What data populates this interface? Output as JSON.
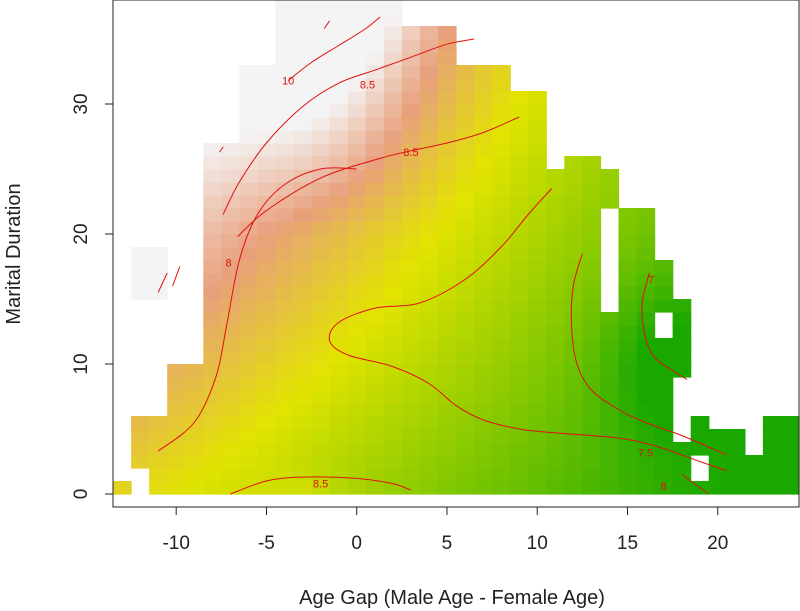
{
  "chart_data": {
    "type": "heatmap",
    "title": "",
    "xlabel": "Age Gap (Male Age - Female Age)",
    "ylabel": "Marital Duration",
    "xlim": [
      -13.5,
      24.5
    ],
    "ylim": [
      -1,
      38
    ],
    "x_ticks": [
      "-10",
      "-5",
      "0",
      "5",
      "10",
      "15",
      "20"
    ],
    "x_tick_values": [
      -10,
      -5,
      0,
      5,
      10,
      15,
      20
    ],
    "y_ticks": [
      "0",
      "10",
      "20",
      "30"
    ],
    "y_tick_values": [
      0,
      10,
      20,
      30
    ],
    "grid": false,
    "legend": "none",
    "color_scale": {
      "low": "#18a800",
      "mid": "#e2e400",
      "high": "#f4f4f4",
      "domain": [
        7.0,
        8.7,
        10.2
      ]
    },
    "contour_color": "#e01010",
    "contour_levels": [
      "10",
      "8.5",
      "8.5",
      "8",
      "7.5",
      "7",
      "8.5",
      "8"
    ],
    "contours": [
      {
        "level": "10",
        "points": [
          [
            -3.8,
            31.8
          ],
          [
            -2.5,
            33.2
          ],
          [
            -1,
            34.5
          ],
          [
            0.5,
            35.8
          ],
          [
            1.3,
            36.7
          ]
        ]
      },
      {
        "level": "10",
        "points": [
          [
            -10.2,
            16
          ],
          [
            -9.8,
            17.5
          ]
        ]
      },
      {
        "level": "10",
        "points": [
          [
            -1.8,
            35.8
          ],
          [
            -1.5,
            36.4
          ]
        ]
      },
      {
        "level": "8.5",
        "points": [
          [
            -7.4,
            21.5
          ],
          [
            -6.5,
            24
          ],
          [
            -5,
            27
          ],
          [
            -3,
            29.8
          ],
          [
            -1,
            31.6
          ],
          [
            1,
            32.6
          ],
          [
            3,
            33.6
          ],
          [
            5,
            34.6
          ],
          [
            6.5,
            35
          ]
        ]
      },
      {
        "level": "8.5",
        "points": [
          [
            -7.6,
            26.3
          ],
          [
            -7.4,
            26.7
          ]
        ]
      },
      {
        "level": "8.5",
        "points": [
          [
            -6.6,
            19.8
          ],
          [
            -5,
            21.8
          ],
          [
            -2,
            24.3
          ],
          [
            1,
            25.7
          ],
          [
            3,
            26.4
          ],
          [
            5,
            27
          ],
          [
            7,
            27.8
          ],
          [
            9,
            29
          ]
        ]
      },
      {
        "level": "8",
        "points": [
          [
            -11,
            3.3
          ],
          [
            -9,
            5.5
          ],
          [
            -7.8,
            9
          ],
          [
            -7.2,
            13
          ],
          [
            -6.5,
            18
          ],
          [
            -5.5,
            21.5
          ],
          [
            -4,
            23.8
          ],
          [
            -2,
            25
          ],
          [
            0,
            25
          ]
        ]
      },
      {
        "level": "8",
        "points": [
          [
            -11,
            15.5
          ],
          [
            -10.5,
            17
          ]
        ]
      },
      {
        "level": "8",
        "points": [
          [
            10.8,
            23.5
          ],
          [
            9.5,
            21.5
          ],
          [
            8,
            19
          ],
          [
            6,
            16.5
          ],
          [
            3.5,
            14.7
          ],
          [
            1,
            14.3
          ],
          [
            -1,
            13.2
          ],
          [
            -1.5,
            11.8
          ],
          [
            -0.5,
            10.7
          ],
          [
            2,
            9.8
          ],
          [
            4,
            8.5
          ],
          [
            5.5,
            6.8
          ],
          [
            7,
            5.7
          ],
          [
            9,
            5
          ],
          [
            11,
            4.7
          ],
          [
            13,
            4.5
          ],
          [
            15,
            4.2
          ],
          [
            17,
            3.5
          ],
          [
            19,
            2.5
          ],
          [
            20.5,
            1.8
          ]
        ]
      },
      {
        "level": "7.5",
        "points": [
          [
            12.5,
            18.5
          ],
          [
            12,
            16
          ],
          [
            11.9,
            13
          ],
          [
            12.2,
            10
          ],
          [
            13,
            8
          ],
          [
            14.5,
            6.5
          ],
          [
            16,
            5.5
          ],
          [
            18,
            4.5
          ],
          [
            20.5,
            3
          ]
        ]
      },
      {
        "level": "7",
        "points": [
          [
            16.2,
            17
          ],
          [
            15.8,
            14.5
          ],
          [
            16,
            12
          ],
          [
            16.5,
            10.5
          ],
          [
            17.5,
            9.5
          ],
          [
            18.3,
            8.8
          ]
        ]
      },
      {
        "level": "8.5",
        "points": [
          [
            -7,
            0
          ],
          [
            -5,
            1
          ],
          [
            -3,
            1.3
          ],
          [
            0,
            1.2
          ],
          [
            2,
            0.8
          ],
          [
            3,
            0.3
          ]
        ]
      },
      {
        "level": "8",
        "points": [
          [
            18,
            1.5
          ],
          [
            19.5,
            0
          ]
        ]
      }
    ],
    "annotations": [
      "10",
      "8.5",
      "8.5",
      "8",
      "7.5",
      "7",
      "8.5",
      "8"
    ],
    "annotation_positions": [
      [
        -3.8,
        31.8
      ],
      [
        0.6,
        31.5
      ],
      [
        3,
        26.3
      ],
      [
        -7.1,
        17.8
      ],
      [
        16,
        3.2
      ],
      [
        16.3,
        16.5
      ],
      [
        -2,
        0.8
      ],
      [
        17,
        0.6
      ]
    ]
  }
}
